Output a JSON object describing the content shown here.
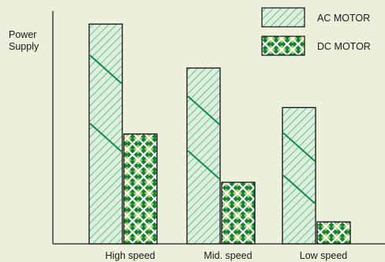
{
  "chart_data": {
    "type": "bar",
    "ylabel_lines": [
      "Power",
      "Supply"
    ],
    "categories": [
      "High speed",
      "Mid. speed",
      "Low speed"
    ],
    "series": [
      {
        "name": "AC MOTOR",
        "values": [
          100,
          80,
          62
        ]
      },
      {
        "name": "DC MOTOR",
        "values": [
          50,
          28,
          10
        ]
      }
    ],
    "ylim": [
      0,
      108
    ],
    "grid": false,
    "legend": "top-right"
  },
  "colors": {
    "background": "#eeefdd",
    "axis": "#222222",
    "ac_fill": "#ddf0df",
    "ac_hatch": "#34a15f",
    "ac_accent": "#0f8a4c",
    "dc_dark": "#177f3d",
    "dc_light": "#9ccf5c",
    "dc_lattice": "#ffffff",
    "bar_outline": "#111111"
  }
}
